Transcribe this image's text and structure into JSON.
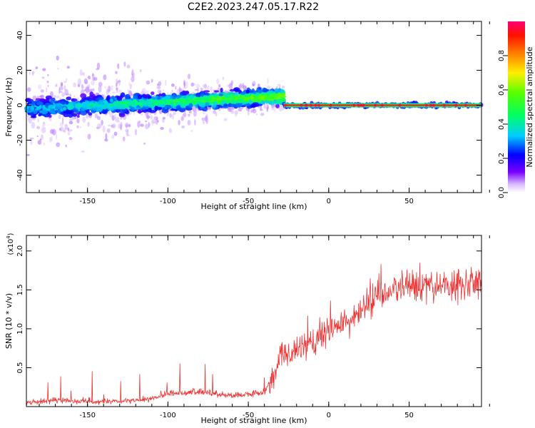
{
  "title": "C2E2.2023.247.05.17.R22",
  "chart_data": [
    {
      "type": "heatmap",
      "xlabel": "Height of straight line (km)",
      "ylabel": "Frequency (Hz)",
      "xlim": [
        -188,
        95
      ],
      "ylim": [
        -50,
        48
      ],
      "xticks": [
        -150,
        -100,
        -50,
        0,
        50
      ],
      "yticks": [
        -40,
        -20,
        0,
        20,
        40
      ],
      "colorbar": {
        "label": "Normalized spectral amplitude",
        "range": [
          0,
          1
        ],
        "ticks": [
          "0.0",
          "0.2",
          "0.4",
          "0.6",
          "0.8"
        ]
      },
      "description_features": {
        "noisy_band": {
          "x_range": [
            -188,
            -28
          ],
          "center_freq_start": -2,
          "center_freq_end": 5,
          "half_width_hz": 7
        },
        "tonal_line": {
          "x_range": [
            -28,
            95
          ],
          "freq": 0,
          "half_width_hz": 2
        }
      }
    },
    {
      "type": "line",
      "xlabel": "Height of straight line (km)",
      "ylabel": "SNR (10 * v/v)",
      "yscale_label": "(x10",
      "yscale_exp": "4",
      "xlim": [
        -188,
        95
      ],
      "ylim": [
        0,
        2.2
      ],
      "xticks": [
        -150,
        -100,
        -50,
        0,
        50
      ],
      "yticks": [
        "0.5",
        "1.0",
        "1.5",
        "2.0"
      ],
      "color": "#ee3333",
      "trend_x": [
        -188,
        -170,
        -130,
        -110,
        -100,
        -80,
        -60,
        -40,
        -33,
        -28,
        -22,
        -15,
        -8,
        0,
        8,
        15,
        22,
        30,
        45,
        60,
        75,
        95
      ],
      "trend_y": [
        0.05,
        0.08,
        0.06,
        0.1,
        0.17,
        0.19,
        0.14,
        0.18,
        0.45,
        0.7,
        0.65,
        0.8,
        0.85,
        1.0,
        1.05,
        1.12,
        1.25,
        1.45,
        1.5,
        1.55,
        1.55,
        1.6
      ]
    }
  ]
}
